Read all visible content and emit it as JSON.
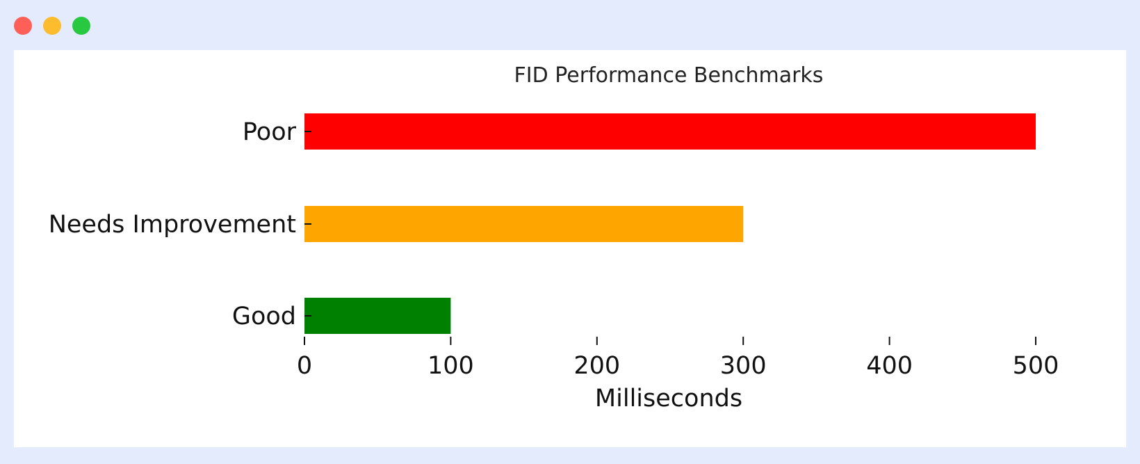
{
  "window": {
    "controls": [
      "close",
      "minimize",
      "maximize"
    ],
    "control_colors": {
      "close": "#fe6058",
      "minimize": "#fdbc2e",
      "maximize": "#28c840"
    }
  },
  "chart_data": {
    "type": "bar",
    "orientation": "horizontal",
    "title": "FID Performance Benchmarks",
    "xlabel": "Milliseconds",
    "ylabel": "",
    "categories": [
      "Poor",
      "Needs Improvement",
      "Good"
    ],
    "values": [
      500,
      300,
      100
    ],
    "colors": [
      "#ff0000",
      "#ffa500",
      "#008000"
    ],
    "xlim": [
      0,
      500
    ],
    "xticks": [
      "0",
      "100",
      "200",
      "300",
      "400",
      "500"
    ],
    "grid": false,
    "legend": "none"
  }
}
